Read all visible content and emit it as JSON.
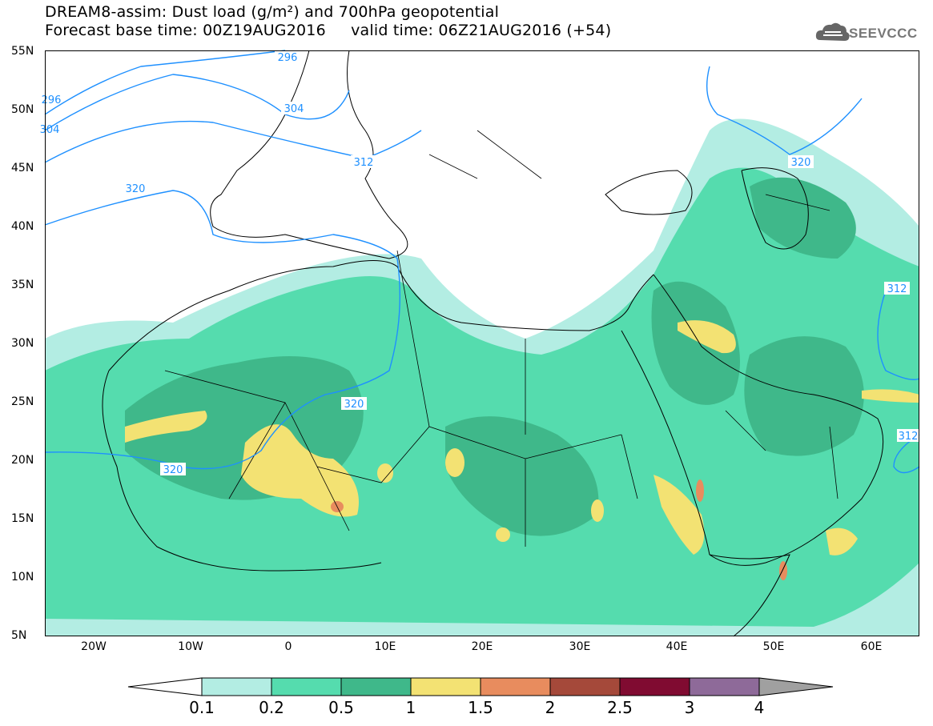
{
  "title": {
    "line1": "DREAM8-assim: Dust load (g/m²) and 700hPa geopotential",
    "line2": "Forecast base time: 00Z19AUG2016     valid time: 06Z21AUG2016 (+54)"
  },
  "logo": {
    "text": "SEEVCCC",
    "icon": "cloud-icon"
  },
  "axes": {
    "lat_labels": [
      "55N",
      "50N",
      "45N",
      "40N",
      "35N",
      "30N",
      "25N",
      "20N",
      "15N",
      "10N",
      "5N"
    ],
    "lon_labels": [
      "20W",
      "10W",
      "0",
      "10E",
      "20E",
      "30E",
      "40E",
      "50E",
      "60E"
    ]
  },
  "contours": {
    "labels": [
      "296",
      "304",
      "312",
      "320",
      "320",
      "320",
      "320",
      "312",
      "312",
      "296",
      "304"
    ]
  },
  "colorbar": {
    "ticks": [
      "0.1",
      "0.2",
      "0.5",
      "1",
      "1.5",
      "2",
      "2.5",
      "3",
      "4"
    ],
    "colors": [
      "#ffffff",
      "#b3ede3",
      "#55dcae",
      "#3fb88a",
      "#f3e273",
      "#e88c5e",
      "#a5493a",
      "#800b31",
      "#8e6a99",
      "#a0a0a0"
    ]
  },
  "colors": {
    "contour": "#1e90ff",
    "dust_light": "#b3ede3",
    "dust_mid": "#55dcae",
    "dust_dark": "#3fb88a",
    "dust_yellow": "#f3e273",
    "dust_orange": "#e88c5e",
    "dust_brown": "#a5493a"
  }
}
